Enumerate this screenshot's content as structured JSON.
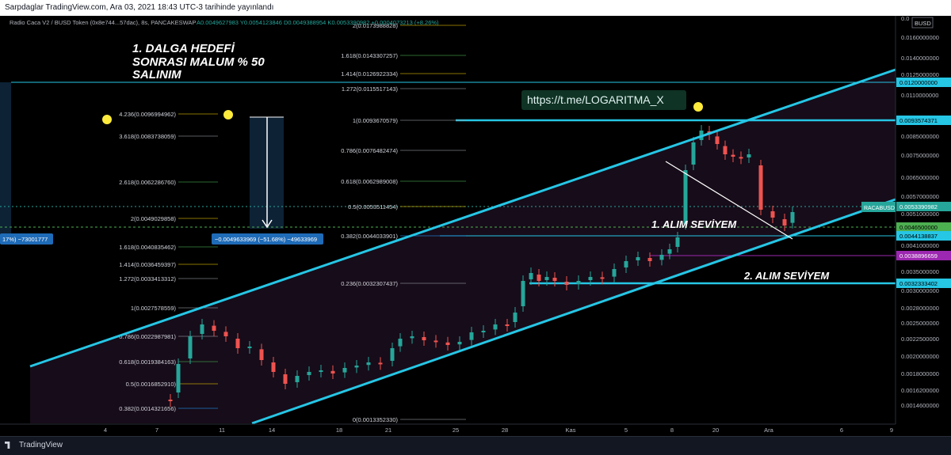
{
  "header": {
    "published": "Sarpdaglar TradingView.com, Ara 03, 2021 18:43 UTC-3 tarihinde yayınlandı"
  },
  "legend": {
    "symbol": "Radio Caca V2 / BUSD Token (0x8e744...57dac), 8s, PANCAKESWAP",
    "ohlc": "A0.0049627983 Y0.0054123846 D0.0049388954 K0.0053390982 +0.0004073213 (+8.26%)"
  },
  "branding": {
    "name": "TradingView"
  },
  "colors": {
    "channel": "#26c6e5",
    "up": "#26a69a",
    "down": "#ef5350",
    "fib_gold": "#e5c100",
    "fib_green": "#4caf50",
    "fib_grey": "#9598a1",
    "fib_blue": "#2196f3",
    "purple": "#9c27b0"
  },
  "chart_data": {
    "type": "candlestick",
    "currency_badge": "BUSD",
    "x_ticks": [
      "4",
      "7",
      "11",
      "14",
      "18",
      "21",
      "25",
      "28",
      "Kas",
      "5",
      "8",
      "20",
      "Ara",
      "6",
      "9"
    ],
    "y_ticks": [
      "0.0160000000",
      "0.0140000000",
      "0.0125000000",
      "0.0110000000",
      "0.0095000000",
      "0.0085000000",
      "0.0075000000",
      "0.0065000000",
      "0.0057000000",
      "0.0051000000",
      "0.0041000000",
      "0.0035000000",
      "0.0030000000",
      "0.0028000000",
      "0.0025000000",
      "0.0022500000",
      "0.0020000000",
      "0.0018000000",
      "0.0016200000",
      "0.0014600000"
    ],
    "price_labels": [
      {
        "text": "0.0120000000",
        "kind": "channel"
      },
      {
        "text": "0.0093574371",
        "kind": "channel"
      },
      {
        "text": "0.0053390982",
        "kind": "last"
      },
      {
        "text": "0.0046500000",
        "kind": "green"
      },
      {
        "text": "0.0044138837",
        "kind": "channel"
      },
      {
        "text": "0.0038896659",
        "kind": "purple"
      },
      {
        "text": "0.0032333402",
        "kind": "channel"
      }
    ],
    "symbol_badge": "RACABUSD",
    "fib_right": [
      {
        "text": "2(0.0173988828)",
        "color": "gold"
      },
      {
        "text": "1.618(0.0143307257)",
        "color": "green"
      },
      {
        "text": "1.414(0.0126922334)",
        "color": "gold"
      },
      {
        "text": "1.272(0.0115517143)",
        "color": "grey"
      },
      {
        "text": "1(0.0093670579)",
        "color": "grey"
      },
      {
        "text": "0.786(0.0076482474)",
        "color": "grey"
      },
      {
        "text": "0.618(0.0062989008)",
        "color": "green"
      },
      {
        "text": "0.5(0.0053511454)",
        "color": "gold"
      },
      {
        "text": "0.382(0.0044033901)",
        "color": "blue"
      },
      {
        "text": "0.236(0.0032307437)",
        "color": "grey"
      },
      {
        "text": "0(0.0013352330)",
        "color": "grey"
      }
    ],
    "fib_left": [
      {
        "text": "4.236(0.0096994962)",
        "color": "gold"
      },
      {
        "text": "3.618(0.0083738059)",
        "color": "grey"
      },
      {
        "text": "2.618(0.0062286760)",
        "color": "green"
      },
      {
        "text": "2(0.0049029858)",
        "color": "gold"
      },
      {
        "text": "1.618(0.0040835462)",
        "color": "green"
      },
      {
        "text": "1.414(0.0036459397)",
        "color": "gold"
      },
      {
        "text": "1.272(0.0033413312)",
        "color": "grey"
      },
      {
        "text": "1(0.0027578559)",
        "color": "grey"
      },
      {
        "text": "0.786(0.0022987981)",
        "color": "grey"
      },
      {
        "text": "0.618(0.0019384163)",
        "color": "green"
      },
      {
        "text": "0.5(0.0016852910)",
        "color": "gold"
      },
      {
        "text": "0.382(0.0014321656)",
        "color": "blue"
      }
    ],
    "measure_label": "−0.0049633969 (−51.68%) −49633969",
    "measure_label_left": "17%) −73001777",
    "annotations": {
      "title": "1. DALGA HEDEFİ SONRASI MALUM % 50 SALINIM",
      "telegram": "https://t.me/LOGARITMA_X",
      "buy1": "1. ALIM SEVİYEM",
      "buy2": "2. ALIM SEVİYEM"
    }
  }
}
